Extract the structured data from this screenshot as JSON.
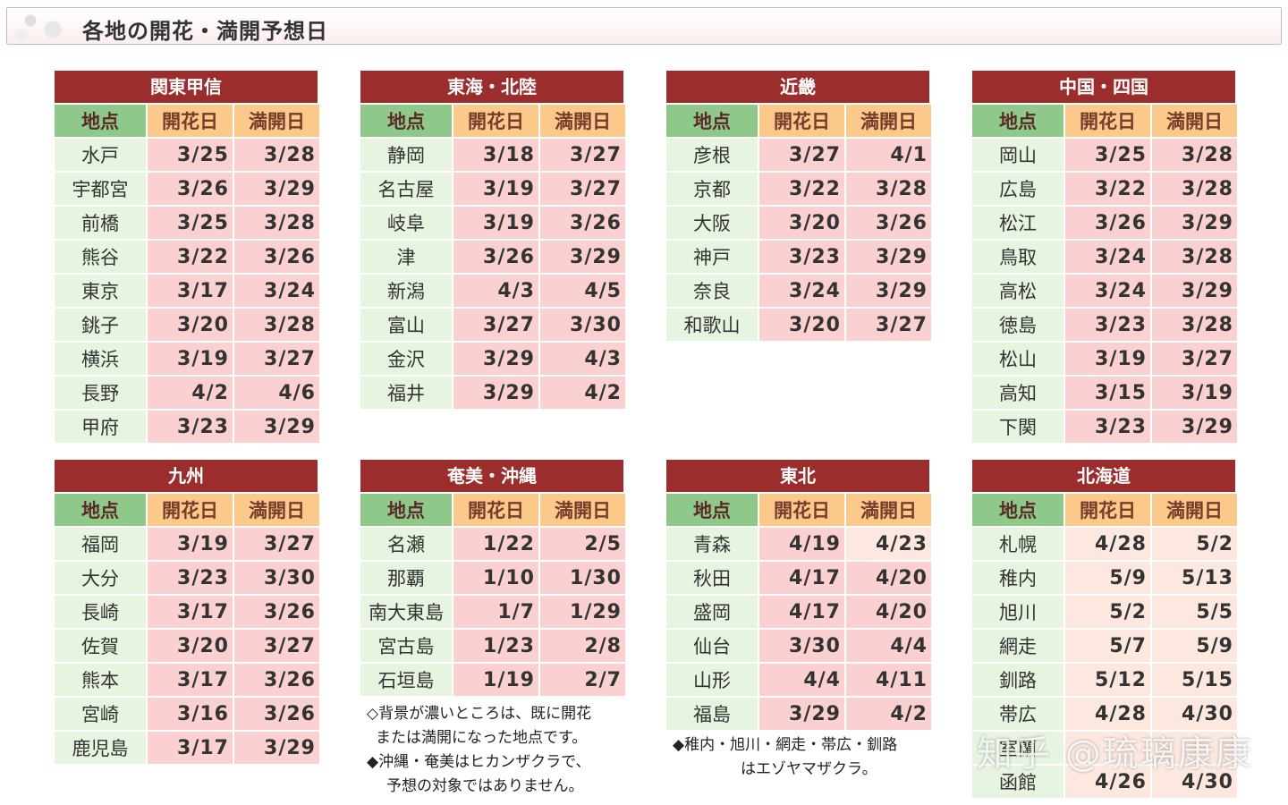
{
  "page_title": "各地の開花・満開予想日",
  "headers": {
    "place": "地点",
    "bloom": "開花日",
    "full": "満開日"
  },
  "regions": [
    {
      "name": "関東甲信",
      "rows": [
        {
          "place": "水戸",
          "bloom": "3/25",
          "full": "3/28",
          "shade": "dark"
        },
        {
          "place": "宇都宮",
          "bloom": "3/26",
          "full": "3/29",
          "shade": "dark"
        },
        {
          "place": "前橋",
          "bloom": "3/25",
          "full": "3/28",
          "shade": "dark"
        },
        {
          "place": "熊谷",
          "bloom": "3/22",
          "full": "3/26",
          "shade": "dark"
        },
        {
          "place": "東京",
          "bloom": "3/17",
          "full": "3/24",
          "shade": "dark"
        },
        {
          "place": "銚子",
          "bloom": "3/20",
          "full": "3/28",
          "shade": "dark"
        },
        {
          "place": "横浜",
          "bloom": "3/19",
          "full": "3/27",
          "shade": "dark"
        },
        {
          "place": "長野",
          "bloom": "4/2",
          "full": "4/6",
          "shade": "dark"
        },
        {
          "place": "甲府",
          "bloom": "3/23",
          "full": "3/29",
          "shade": "dark"
        }
      ]
    },
    {
      "name": "東海・北陸",
      "rows": [
        {
          "place": "静岡",
          "bloom": "3/18",
          "full": "3/27",
          "shade": "dark"
        },
        {
          "place": "名古屋",
          "bloom": "3/19",
          "full": "3/27",
          "shade": "dark"
        },
        {
          "place": "岐阜",
          "bloom": "3/19",
          "full": "3/26",
          "shade": "dark"
        },
        {
          "place": "津",
          "bloom": "3/26",
          "full": "3/29",
          "shade": "dark"
        },
        {
          "place": "新潟",
          "bloom": "4/3",
          "full": "4/5",
          "shade": "dark"
        },
        {
          "place": "富山",
          "bloom": "3/27",
          "full": "3/30",
          "shade": "dark"
        },
        {
          "place": "金沢",
          "bloom": "3/29",
          "full": "4/3",
          "shade": "dark"
        },
        {
          "place": "福井",
          "bloom": "3/29",
          "full": "4/2",
          "shade": "dark"
        }
      ]
    },
    {
      "name": "近畿",
      "rows": [
        {
          "place": "彦根",
          "bloom": "3/27",
          "full": "4/1",
          "shade": "dark"
        },
        {
          "place": "京都",
          "bloom": "3/22",
          "full": "3/28",
          "shade": "dark"
        },
        {
          "place": "大阪",
          "bloom": "3/20",
          "full": "3/26",
          "shade": "dark"
        },
        {
          "place": "神戸",
          "bloom": "3/23",
          "full": "3/29",
          "shade": "dark"
        },
        {
          "place": "奈良",
          "bloom": "3/24",
          "full": "3/29",
          "shade": "dark"
        },
        {
          "place": "和歌山",
          "bloom": "3/20",
          "full": "3/27",
          "shade": "dark"
        }
      ]
    },
    {
      "name": "中国・四国",
      "rows": [
        {
          "place": "岡山",
          "bloom": "3/25",
          "full": "3/28",
          "shade": "dark"
        },
        {
          "place": "広島",
          "bloom": "3/22",
          "full": "3/28",
          "shade": "dark"
        },
        {
          "place": "松江",
          "bloom": "3/26",
          "full": "3/29",
          "shade": "dark"
        },
        {
          "place": "鳥取",
          "bloom": "3/24",
          "full": "3/28",
          "shade": "dark"
        },
        {
          "place": "高松",
          "bloom": "3/24",
          "full": "3/29",
          "shade": "dark"
        },
        {
          "place": "徳島",
          "bloom": "3/23",
          "full": "3/28",
          "shade": "dark"
        },
        {
          "place": "松山",
          "bloom": "3/19",
          "full": "3/27",
          "shade": "dark"
        },
        {
          "place": "高知",
          "bloom": "3/15",
          "full": "3/19",
          "shade": "dark"
        },
        {
          "place": "下関",
          "bloom": "3/23",
          "full": "3/29",
          "shade": "dark"
        }
      ]
    },
    {
      "name": "九州",
      "rows": [
        {
          "place": "福岡",
          "bloom": "3/19",
          "full": "3/27",
          "shade": "dark"
        },
        {
          "place": "大分",
          "bloom": "3/23",
          "full": "3/30",
          "shade": "dark"
        },
        {
          "place": "長崎",
          "bloom": "3/17",
          "full": "3/26",
          "shade": "dark"
        },
        {
          "place": "佐賀",
          "bloom": "3/20",
          "full": "3/27",
          "shade": "dark"
        },
        {
          "place": "熊本",
          "bloom": "3/17",
          "full": "3/26",
          "shade": "dark"
        },
        {
          "place": "宮崎",
          "bloom": "3/16",
          "full": "3/26",
          "shade": "dark"
        },
        {
          "place": "鹿児島",
          "bloom": "3/17",
          "full": "3/29",
          "shade": "dark"
        }
      ]
    },
    {
      "name": "奄美・沖縄",
      "rows": [
        {
          "place": "名瀬",
          "bloom": "1/22",
          "full": "2/5",
          "shade": "dark"
        },
        {
          "place": "那覇",
          "bloom": "1/10",
          "full": "1/30",
          "shade": "dark"
        },
        {
          "place": "南大東島",
          "bloom": "1/7",
          "full": "1/29",
          "shade": "dark"
        },
        {
          "place": "宮古島",
          "bloom": "1/23",
          "full": "2/8",
          "shade": "dark"
        },
        {
          "place": "石垣島",
          "bloom": "1/19",
          "full": "2/7",
          "shade": "dark"
        }
      ]
    },
    {
      "name": "東北",
      "rows": [
        {
          "place": "青森",
          "bloom": "4/19",
          "full": "4/23",
          "shade": "dark",
          "full_shade": "light"
        },
        {
          "place": "秋田",
          "bloom": "4/17",
          "full": "4/20",
          "shade": "dark"
        },
        {
          "place": "盛岡",
          "bloom": "4/17",
          "full": "4/20",
          "shade": "dark"
        },
        {
          "place": "仙台",
          "bloom": "3/30",
          "full": "4/4",
          "shade": "dark"
        },
        {
          "place": "山形",
          "bloom": "4/4",
          "full": "4/11",
          "shade": "dark"
        },
        {
          "place": "福島",
          "bloom": "3/29",
          "full": "4/2",
          "shade": "dark"
        }
      ]
    },
    {
      "name": "北海道",
      "rows": [
        {
          "place": "札幌",
          "bloom": "4/28",
          "full": "5/2",
          "shade": "light"
        },
        {
          "place": "稚内",
          "bloom": "5/9",
          "full": "5/13",
          "shade": "light"
        },
        {
          "place": "旭川",
          "bloom": "5/2",
          "full": "5/5",
          "shade": "light"
        },
        {
          "place": "網走",
          "bloom": "5/7",
          "full": "5/9",
          "shade": "light"
        },
        {
          "place": "釧路",
          "bloom": "5/12",
          "full": "5/15",
          "shade": "light"
        },
        {
          "place": "帯広",
          "bloom": "4/28",
          "full": "4/30",
          "shade": "light"
        },
        {
          "place": "室蘭",
          "bloom": "",
          "full": "",
          "shade": "light"
        },
        {
          "place": "函館",
          "bloom": "4/26",
          "full": "4/30",
          "shade": "light"
        }
      ]
    }
  ],
  "notes": {
    "okinawa": [
      "◇背景が濃いところは、既に開花",
      "または満開になった地点です。",
      "◆沖縄・奄美はヒカンザクラで、",
      "予想の対象ではありません。"
    ],
    "tohoku": [
      "◆稚内・旭川・網走・帯広・釧路",
      "はエゾヤマザクラ。"
    ]
  },
  "watermark": "知乎 @琉璃康康",
  "colors": {
    "header_red": "#9b2d2d",
    "header_green": "#8fc98a",
    "header_orange": "#fbc98a",
    "cell_dark": "#fbd0d0",
    "cell_light": "#fde8df",
    "place_bg": "#e7f4e0"
  }
}
